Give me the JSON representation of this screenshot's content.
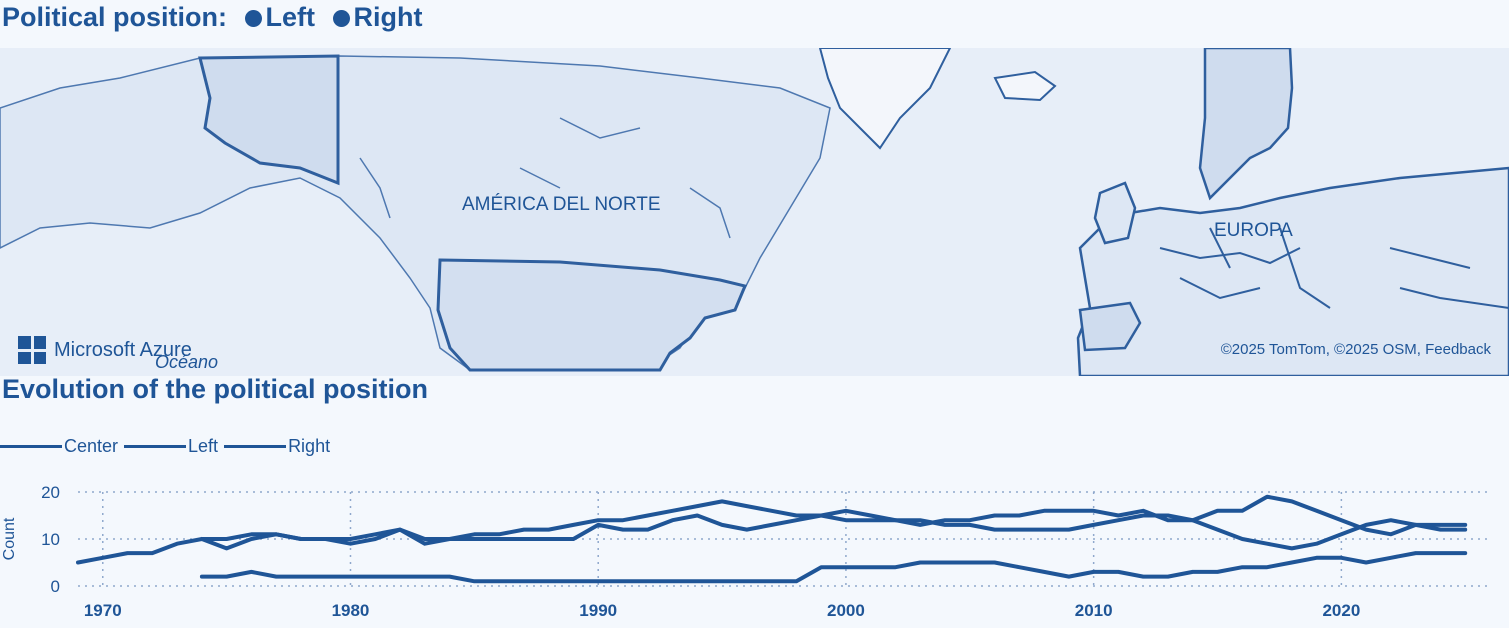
{
  "map_section": {
    "title": "Political position:",
    "legend": [
      {
        "label": "Left",
        "color": "#1f5597"
      },
      {
        "label": "Right",
        "color": "#1f5597"
      }
    ],
    "labels": {
      "north_america": "AMÉRICA DEL NORTE",
      "europe": "EUROPA",
      "ocean": "Océano"
    },
    "logo_text": "Microsoft Azure",
    "attribution": "©2025 TomTom, ©2025 OSM, Feedback"
  },
  "chart_section": {
    "title": "Evolution of the political position"
  },
  "chart_data": {
    "type": "line",
    "title": "Evolution of the political position",
    "xlabel": "",
    "ylabel": "Count",
    "xlim": [
      1969,
      2026
    ],
    "ylim": [
      0,
      20
    ],
    "x_ticks": [
      1970,
      1980,
      1990,
      2000,
      2010,
      2020
    ],
    "y_ticks": [
      0,
      10,
      20
    ],
    "grid": true,
    "legend_position": "top-left",
    "x": [
      1969,
      1970,
      1971,
      1972,
      1973,
      1974,
      1975,
      1976,
      1977,
      1978,
      1979,
      1980,
      1981,
      1982,
      1983,
      1984,
      1985,
      1986,
      1987,
      1988,
      1989,
      1990,
      1991,
      1992,
      1993,
      1994,
      1995,
      1996,
      1997,
      1998,
      1999,
      2000,
      2001,
      2002,
      2003,
      2004,
      2005,
      2006,
      2007,
      2008,
      2009,
      2010,
      2011,
      2012,
      2013,
      2014,
      2015,
      2016,
      2017,
      2018,
      2019,
      2020,
      2021,
      2022,
      2023,
      2024,
      2025
    ],
    "series": [
      {
        "name": "Center",
        "values": [
          5,
          6,
          7,
          7,
          9,
          10,
          10,
          11,
          11,
          10,
          10,
          10,
          11,
          12,
          10,
          10,
          11,
          11,
          12,
          12,
          13,
          14,
          14,
          15,
          16,
          17,
          18,
          17,
          16,
          15,
          15,
          14,
          14,
          14,
          14,
          13,
          13,
          12,
          12,
          12,
          12,
          13,
          14,
          15,
          15,
          14,
          12,
          10,
          9,
          8,
          9,
          11,
          13,
          14,
          13,
          12,
          12
        ]
      },
      {
        "name": "Left",
        "values": [
          null,
          null,
          null,
          null,
          null,
          2,
          2,
          3,
          2,
          2,
          2,
          2,
          2,
          2,
          2,
          2,
          1,
          1,
          1,
          1,
          1,
          1,
          1,
          1,
          1,
          1,
          1,
          1,
          1,
          1,
          4,
          4,
          4,
          4,
          5,
          5,
          5,
          5,
          4,
          3,
          2,
          3,
          3,
          2,
          2,
          3,
          3,
          4,
          4,
          5,
          6,
          6,
          5,
          6,
          7,
          7,
          7
        ]
      },
      {
        "name": "Right",
        "values": [
          null,
          null,
          null,
          null,
          null,
          10,
          8,
          10,
          11,
          10,
          10,
          9,
          10,
          12,
          9,
          10,
          10,
          10,
          10,
          10,
          10,
          13,
          12,
          12,
          14,
          15,
          13,
          12,
          13,
          14,
          15,
          16,
          15,
          14,
          13,
          14,
          14,
          15,
          15,
          16,
          16,
          16,
          15,
          16,
          14,
          14,
          16,
          16,
          19,
          18,
          16,
          14,
          12,
          11,
          13,
          13,
          13
        ]
      }
    ]
  }
}
